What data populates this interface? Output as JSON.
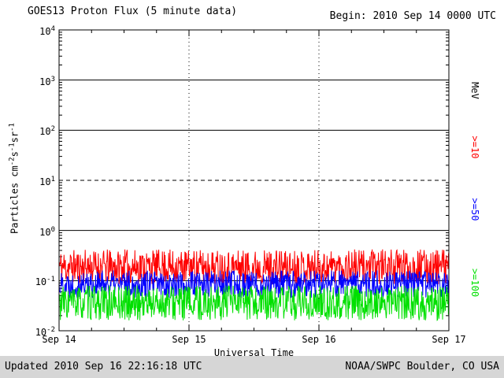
{
  "chart_data": {
    "type": "line",
    "title": "GOES13 Proton Flux (5 minute data)",
    "begin_label": "Begin: 2010 Sep 14 0000 UTC",
    "xlabel": "Universal Time",
    "ylabel": "Particles cm-2 s-1 sr-1",
    "ylabel_parts": [
      {
        "text": "Particles cm"
      },
      {
        "sup": "-2"
      },
      {
        "text": "s"
      },
      {
        "sup": "-1"
      },
      {
        "text": "sr"
      },
      {
        "sup": "-1"
      }
    ],
    "right_axis_label": "MeV",
    "x_days": 3,
    "points_per_day": 288,
    "x_ticks": [
      {
        "label": "Sep 14",
        "day": 0
      },
      {
        "label": "Sep 15",
        "day": 1
      },
      {
        "label": "Sep 16",
        "day": 2
      },
      {
        "label": "Sep 17",
        "day": 3
      }
    ],
    "y_tick_exponents": [
      4,
      3,
      2,
      1,
      0,
      -1,
      -2
    ],
    "ylim": [
      0.01,
      10000
    ],
    "grid": {
      "solid_decades": [
        3,
        2,
        0,
        -1
      ],
      "dashed_decades": [
        1
      ],
      "dotted_vertical_days": [
        1,
        2
      ]
    },
    "series": [
      {
        "name": ">=10",
        "unit": "MeV",
        "color": "#ff0000",
        "approx_level": 0.19,
        "approx_range": [
          0.085,
          0.42
        ],
        "seed": 11
      },
      {
        "name": ">=50",
        "unit": "MeV",
        "color": "#0000ff",
        "approx_level": 0.085,
        "approx_range": [
          0.045,
          0.16
        ],
        "seed": 22
      },
      {
        "name": ">=100",
        "unit": "MeV",
        "color": "#00e000",
        "approx_level": 0.036,
        "approx_range": [
          0.016,
          0.08
        ],
        "seed": 33
      }
    ]
  },
  "footer": {
    "updated": "Updated 2010 Sep 16 22:16:18 UTC",
    "credit": "NOAA/SWPC Boulder, CO USA"
  }
}
